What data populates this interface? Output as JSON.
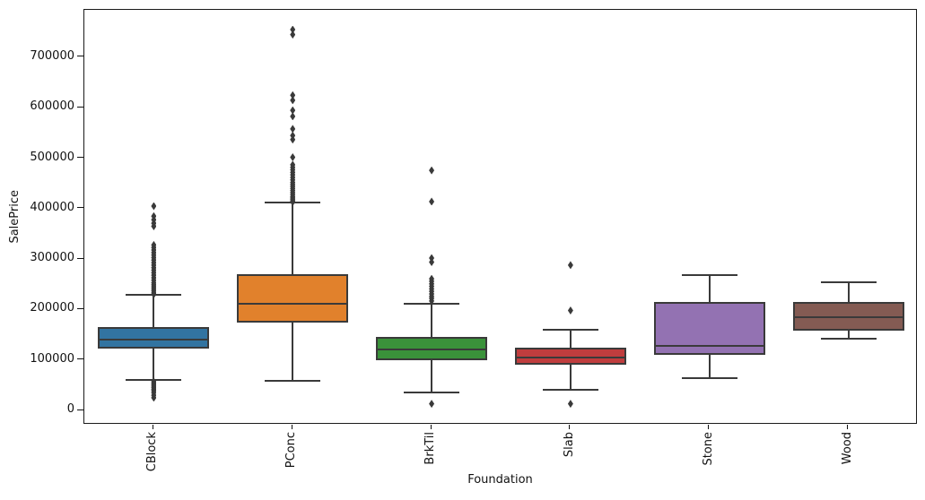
{
  "chart_data": {
    "type": "box",
    "title": "",
    "xlabel": "Foundation",
    "ylabel": "SalePrice",
    "categories": [
      "CBlock",
      "PConc",
      "BrkTil",
      "Slab",
      "Stone",
      "Wood"
    ],
    "ylim": [
      -28425,
      794161
    ],
    "yticks": [
      0,
      100000,
      200000,
      300000,
      400000,
      500000,
      600000,
      700000
    ],
    "grid": false,
    "legend": "none",
    "frame_color": "#1a1a1a",
    "line_color": "#3a3a3a",
    "flier_color": "#3a3a3a",
    "flier_marker": "diamond",
    "series": [
      {
        "category": "CBlock",
        "color": "#3274A1",
        "whisker_low": 60000,
        "q1": 122500,
        "median": 140000,
        "q3": 165000,
        "whisker_high": 229000,
        "outliers": [
          405000,
          385000,
          378000,
          371000,
          365000,
          328000,
          323000,
          318000,
          313000,
          308000,
          303000,
          298000,
          293000,
          288000,
          283000,
          278000,
          273000,
          268000,
          263000,
          258000,
          253000,
          249000,
          245000,
          241000,
          237000,
          233000,
          230000,
          57000,
          54000,
          51000,
          48000,
          45000,
          42000,
          39000,
          35000,
          30000,
          25000
        ]
      },
      {
        "category": "PConc",
        "color": "#E1812C",
        "whisker_low": 59000,
        "q1": 174000,
        "median": 211500,
        "q3": 270000,
        "whisker_high": 412000,
        "outliers": [
          755000,
          745000,
          625000,
          615000,
          595000,
          583000,
          558000,
          545000,
          537000,
          502000,
          487000,
          482000,
          477000,
          472000,
          467000,
          462000,
          457000,
          452000,
          448000,
          444000,
          440000,
          436000,
          432000,
          428000,
          424000,
          421000,
          418000,
          415000,
          413000
        ]
      },
      {
        "category": "BrkTil",
        "color": "#3A923A",
        "whisker_low": 35500,
        "q1": 99500,
        "median": 120500,
        "q3": 145500,
        "whisker_high": 211000,
        "outliers": [
          476000,
          414000,
          302000,
          294000,
          261000,
          256000,
          251000,
          246000,
          241000,
          236000,
          231000,
          226000,
          222000,
          217000,
          13000
        ]
      },
      {
        "category": "Slab",
        "color": "#C03D3E",
        "whisker_low": 41000,
        "q1": 90500,
        "median": 104500,
        "q3": 124000,
        "whisker_high": 160000,
        "outliers": [
          288000,
          198000,
          13000
        ]
      },
      {
        "category": "Stone",
        "color": "#9372B2",
        "whisker_low": 64000,
        "q1": 110000,
        "median": 128000,
        "q3": 215000,
        "whisker_high": 268000,
        "outliers": []
      },
      {
        "category": "Wood",
        "color": "#845B53",
        "whisker_low": 142000,
        "q1": 158000,
        "median": 185000,
        "q3": 215000,
        "whisker_high": 254000,
        "outliers": []
      }
    ]
  }
}
